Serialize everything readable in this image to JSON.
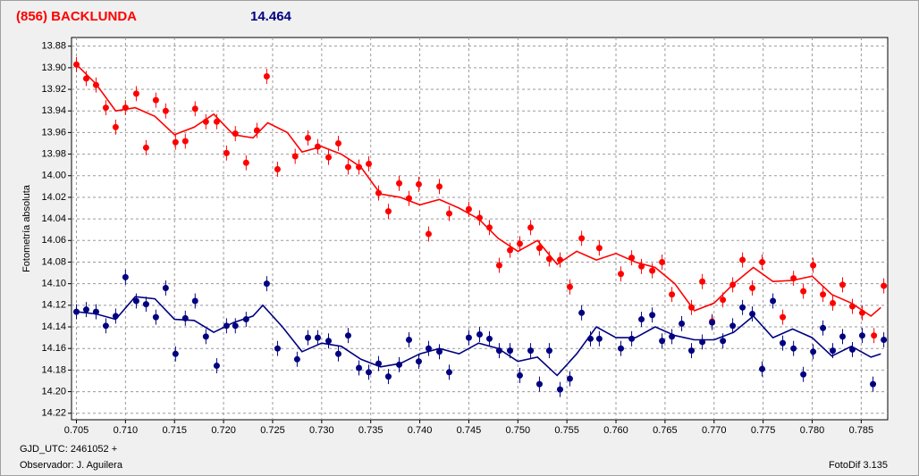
{
  "chart_data": {
    "type": "scatter",
    "title": "(856) BACKLUNDA",
    "subtitle": "14.464",
    "ylabel": "Fotometría absoluta",
    "xlabel": "GJD_UTC: 2461052 +",
    "observer": "Observador: J. Aguilera",
    "software": "FotoDif 3.135",
    "title_color": "#ff0000",
    "subtitle_color": "#000080",
    "xlim": [
      0.7045,
      0.7877
    ],
    "ylim": [
      13.872,
      14.226
    ],
    "y_inverted": true,
    "grid": true,
    "xticks": [
      0.705,
      {
        "value": 0.71,
        "label": "0.710"
      },
      0.715,
      {
        "value": 0.72,
        "label": "0.720"
      },
      0.725,
      {
        "value": 0.73,
        "label": "0.730"
      },
      0.735,
      {
        "value": 0.74,
        "label": "0.740"
      },
      0.745,
      {
        "value": 0.75,
        "label": "0.750"
      },
      0.755,
      {
        "value": 0.76,
        "label": "0.760"
      },
      0.765,
      {
        "value": 0.77,
        "label": "0.770"
      },
      0.775,
      {
        "value": 0.78,
        "label": "0.780"
      },
      0.785
    ],
    "yticks": [
      13.88,
      {
        "value": 13.9,
        "label": "13.90"
      },
      13.92,
      13.94,
      13.96,
      13.98,
      {
        "value": 14.0,
        "label": "14.00"
      },
      14.02,
      14.04,
      14.06,
      14.08,
      {
        "value": 14.1,
        "label": "14.10"
      },
      14.12,
      14.14,
      14.16,
      14.18,
      {
        "value": 14.2,
        "label": "14.20"
      },
      14.22
    ],
    "series": [
      {
        "type": "scatter",
        "color": "#ff0000",
        "error": 0.007,
        "x": [
          0.705,
          0.706,
          0.707,
          0.708,
          0.709,
          0.71,
          0.7111,
          0.7121,
          0.7131,
          0.7141,
          0.7151,
          0.7161,
          0.7171,
          0.7182,
          0.7193,
          0.7203,
          0.7212,
          0.7223,
          0.7234,
          0.7244,
          0.7255,
          0.7273,
          0.7286,
          0.7296,
          0.7307,
          0.7317,
          0.7327,
          0.7338,
          0.7348,
          0.7358,
          0.7368,
          0.7379,
          0.7389,
          0.7399,
          0.7409,
          0.742,
          0.743,
          0.745,
          0.7461,
          0.7471,
          0.7481,
          0.7492,
          0.7502,
          0.7513,
          0.7522,
          0.7532,
          0.7543,
          0.7553,
          0.7565,
          0.7583,
          0.7605,
          0.7616,
          0.7626,
          0.7637,
          0.7647,
          0.7657,
          0.7677,
          0.7688,
          0.7698,
          0.7709,
          0.7719,
          0.7729,
          0.7739,
          0.7749,
          0.777,
          0.7781,
          0.7791,
          0.7801,
          0.7811,
          0.7821,
          0.7831,
          0.7841,
          0.7851,
          0.7863,
          0.7873
        ],
        "values": [
          13.897,
          13.91,
          13.916,
          13.937,
          13.955,
          13.937,
          13.924,
          13.974,
          13.93,
          13.94,
          13.969,
          13.968,
          13.938,
          13.95,
          13.95,
          13.979,
          13.961,
          13.988,
          13.958,
          13.908,
          13.994,
          13.982,
          13.965,
          13.973,
          13.983,
          13.97,
          13.992,
          13.992,
          13.989,
          14.016,
          14.033,
          14.007,
          14.021,
          14.008,
          14.054,
          14.01,
          14.035,
          14.031,
          14.039,
          14.048,
          14.083,
          14.069,
          14.063,
          14.048,
          14.067,
          14.077,
          14.078,
          14.103,
          14.058,
          14.067,
          14.091,
          14.076,
          14.084,
          14.088,
          14.08,
          14.11,
          14.122,
          14.098,
          14.135,
          14.115,
          14.101,
          14.078,
          14.104,
          14.08,
          14.131,
          14.095,
          14.107,
          14.083,
          14.11,
          14.118,
          14.101,
          14.121,
          14.127,
          14.148,
          14.102
        ]
      },
      {
        "type": "scatter",
        "color": "#000080",
        "error": 0.007,
        "x": [
          0.705,
          0.706,
          0.707,
          0.708,
          0.709,
          0.71,
          0.7111,
          0.7121,
          0.7131,
          0.7141,
          0.7151,
          0.7161,
          0.7171,
          0.7182,
          0.7193,
          0.7203,
          0.7212,
          0.7223,
          0.7244,
          0.7255,
          0.7275,
          0.7286,
          0.7296,
          0.7307,
          0.7317,
          0.7327,
          0.7338,
          0.7348,
          0.7358,
          0.7368,
          0.7379,
          0.7389,
          0.7399,
          0.7409,
          0.742,
          0.743,
          0.745,
          0.7461,
          0.7471,
          0.7481,
          0.7492,
          0.7502,
          0.7513,
          0.7522,
          0.7532,
          0.7543,
          0.7553,
          0.7565,
          0.7574,
          0.7583,
          0.7605,
          0.7616,
          0.7626,
          0.7637,
          0.7647,
          0.7657,
          0.7667,
          0.7677,
          0.7688,
          0.7698,
          0.7709,
          0.7719,
          0.7729,
          0.7739,
          0.7749,
          0.776,
          0.777,
          0.7781,
          0.7791,
          0.7801,
          0.7811,
          0.7821,
          0.7831,
          0.7841,
          0.7851,
          0.7862,
          0.7873
        ],
        "values": [
          14.126,
          14.124,
          14.126,
          14.139,
          14.13,
          14.094,
          14.116,
          14.119,
          14.131,
          14.104,
          14.165,
          14.132,
          14.116,
          14.149,
          14.176,
          14.139,
          14.139,
          14.133,
          14.1,
          14.16,
          14.17,
          14.15,
          14.15,
          14.153,
          14.165,
          14.148,
          14.178,
          14.182,
          14.174,
          14.186,
          14.175,
          14.152,
          14.172,
          14.16,
          14.163,
          14.182,
          14.15,
          14.147,
          14.151,
          14.162,
          14.162,
          14.185,
          14.162,
          14.193,
          14.162,
          14.198,
          14.188,
          14.127,
          14.151,
          14.151,
          14.16,
          14.151,
          14.133,
          14.129,
          14.153,
          14.149,
          14.137,
          14.162,
          14.154,
          14.136,
          14.153,
          14.139,
          14.122,
          14.128,
          14.179,
          14.116,
          14.155,
          14.16,
          14.184,
          14.163,
          14.141,
          14.162,
          14.149,
          14.161,
          14.148,
          14.193,
          14.152
        ]
      },
      {
        "type": "line",
        "color": "#ff0000",
        "x": [
          0.705,
          0.707,
          0.709,
          0.711,
          0.713,
          0.715,
          0.717,
          0.719,
          0.721,
          0.723,
          0.7245,
          0.7265,
          0.728,
          0.73,
          0.732,
          0.734,
          0.736,
          0.738,
          0.74,
          0.742,
          0.744,
          0.746,
          0.748,
          0.75,
          0.752,
          0.754,
          0.756,
          0.758,
          0.76,
          0.762,
          0.764,
          0.766,
          0.768,
          0.77,
          0.772,
          0.774,
          0.776,
          0.778,
          0.78,
          0.782,
          0.784,
          0.786,
          0.787
        ],
        "values": [
          13.897,
          13.915,
          13.94,
          13.937,
          13.945,
          13.962,
          13.955,
          13.943,
          13.962,
          13.965,
          13.951,
          13.96,
          13.978,
          13.973,
          13.98,
          13.992,
          14.017,
          14.02,
          14.027,
          14.022,
          14.03,
          14.04,
          14.058,
          14.07,
          14.06,
          14.082,
          14.07,
          14.078,
          14.072,
          14.08,
          14.085,
          14.1,
          14.125,
          14.118,
          14.1,
          14.085,
          14.098,
          14.097,
          14.093,
          14.11,
          14.118,
          14.13,
          14.122
        ]
      },
      {
        "type": "line",
        "color": "#000080",
        "x": [
          0.705,
          0.707,
          0.709,
          0.711,
          0.713,
          0.715,
          0.717,
          0.719,
          0.721,
          0.723,
          0.724,
          0.726,
          0.728,
          0.73,
          0.732,
          0.734,
          0.736,
          0.738,
          0.74,
          0.742,
          0.744,
          0.746,
          0.748,
          0.75,
          0.752,
          0.754,
          0.756,
          0.758,
          0.76,
          0.762,
          0.764,
          0.766,
          0.768,
          0.77,
          0.772,
          0.774,
          0.776,
          0.778,
          0.78,
          0.782,
          0.784,
          0.786,
          0.787
        ],
        "values": [
          14.126,
          14.128,
          14.133,
          14.112,
          14.114,
          14.133,
          14.134,
          14.145,
          14.136,
          14.13,
          14.12,
          14.14,
          14.163,
          14.155,
          14.158,
          14.17,
          14.177,
          14.174,
          14.165,
          14.16,
          14.165,
          14.155,
          14.16,
          14.172,
          14.168,
          14.185,
          14.165,
          14.14,
          14.15,
          14.15,
          14.14,
          14.148,
          14.152,
          14.152,
          14.145,
          14.13,
          14.15,
          14.142,
          14.15,
          14.167,
          14.158,
          14.168,
          14.165
        ]
      }
    ]
  }
}
